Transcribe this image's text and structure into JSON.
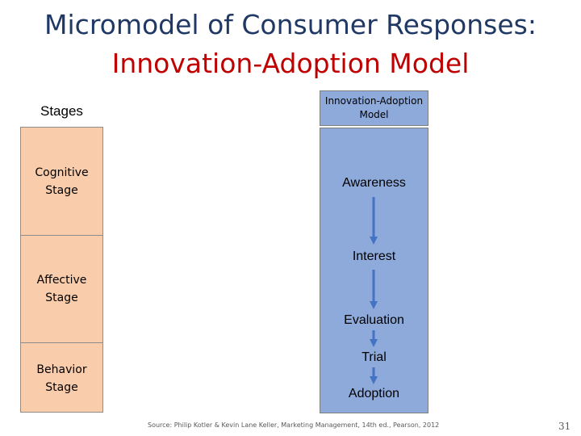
{
  "title": {
    "line1": "Micromodel of Consumer Responses:",
    "line2": "Innovation-Adoption Model"
  },
  "stages": {
    "header": "Stages",
    "items": [
      {
        "label_line1": "Cognitive",
        "label_line2": "Stage"
      },
      {
        "label_line1": "Affective",
        "label_line2": "Stage"
      },
      {
        "label_line1": "Behavior",
        "label_line2": "Stage"
      }
    ]
  },
  "model": {
    "header_line1": "Innovation-Adoption",
    "header_line2": "Model",
    "steps": [
      "Awareness",
      "Interest",
      "Evaluation",
      "Trial",
      "Adoption"
    ]
  },
  "footer": {
    "source": "Source: Philip Kotler & Kevin Lane Keller, Marketing Management, 14th ed., Pearson, 2012",
    "slide_number": "31"
  },
  "colors": {
    "title_primary": "#1f3864",
    "title_accent": "#c00000",
    "stage_fill": "#f9cdac",
    "model_fill": "#8eaadb",
    "arrow": "#4472c4"
  }
}
